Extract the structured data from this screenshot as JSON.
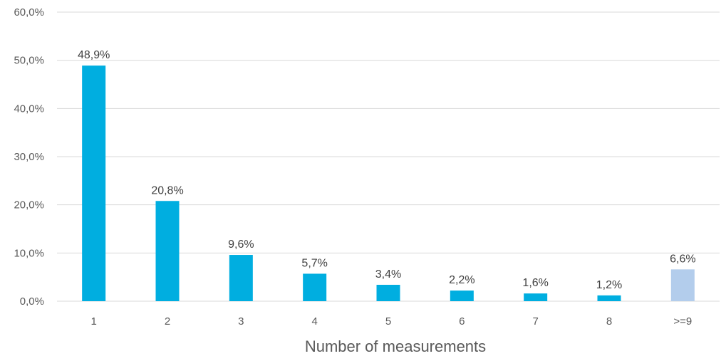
{
  "chart_data": {
    "type": "bar",
    "categories": [
      "1",
      "2",
      "3",
      "4",
      "5",
      "6",
      "7",
      "8",
      ">=9"
    ],
    "values": [
      48.9,
      20.8,
      9.6,
      5.7,
      3.4,
      2.2,
      1.6,
      1.2,
      6.6
    ],
    "data_labels": [
      "48,9%",
      "20,8%",
      "9,6%",
      "5,7%",
      "3,4%",
      "2,2%",
      "1,6%",
      "1,2%",
      "6,6%"
    ],
    "y_ticks": [
      0,
      10,
      20,
      30,
      40,
      50,
      60
    ],
    "y_tick_labels": [
      "0,0%",
      "10,0%",
      "20,0%",
      "30,0%",
      "40,0%",
      "50,0%",
      "60,0%"
    ],
    "ylim": [
      0,
      60
    ],
    "xlabel": "Number of measurements",
    "ylabel": "",
    "grid": true,
    "colors": {
      "bar": "#00aee0",
      "bar_highlight": "#b3cdec",
      "grid": "#d9d9d9",
      "text": "#595959"
    },
    "highlight_categories": [
      ">=9"
    ]
  }
}
